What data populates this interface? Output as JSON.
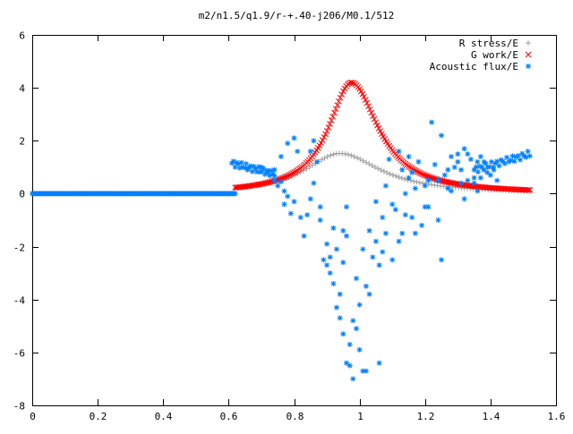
{
  "chart_data": {
    "type": "scatter",
    "title": "m2/n1.5/q1.9/r-+.40-j206/M0.1/512",
    "xlabel": "",
    "ylabel": "",
    "xlim": [
      0,
      1.6
    ],
    "ylim": [
      -8,
      6
    ],
    "xticks": [
      "0",
      "0.2",
      "0.4",
      "0.6",
      "0.8",
      "1",
      "1.2",
      "1.4",
      "1.6"
    ],
    "yticks": [
      "6",
      "4",
      "2",
      "0",
      "-2",
      "-4",
      "-6",
      "-8"
    ],
    "grid": false,
    "legend_position": "top-right",
    "series": [
      {
        "name": "R stress/E",
        "marker": "plus",
        "color": "#a0a0a0",
        "curve": {
          "x_range": [
            0.62,
            1.52
          ],
          "n_points": 100,
          "peak_x": 0.94,
          "peak_y": 1.52,
          "width_left": 0.13,
          "width_right": 0.15
        },
        "points": [
          [
            0.62,
            0.0
          ],
          [
            0.7,
            0.22
          ],
          [
            0.8,
            0.7
          ],
          [
            0.9,
            1.4
          ],
          [
            0.94,
            1.52
          ],
          [
            1.0,
            1.28
          ],
          [
            1.1,
            0.5
          ],
          [
            1.2,
            0.12
          ],
          [
            1.3,
            0.0
          ],
          [
            1.52,
            0.0
          ]
        ]
      },
      {
        "name": "G work/E",
        "marker": "cross",
        "color": "#ff0000",
        "curve": {
          "x_range": [
            0.62,
            1.52
          ],
          "n_points": 200,
          "peak_x": 0.975,
          "peak_y": 4.2,
          "width_left": 0.085,
          "width_right": 0.1
        },
        "points": [
          [
            0.62,
            0.0
          ],
          [
            0.8,
            0.75
          ],
          [
            0.9,
            2.9
          ],
          [
            0.975,
            4.2
          ],
          [
            1.05,
            2.8
          ],
          [
            1.2,
            0.8
          ],
          [
            1.35,
            0.15
          ],
          [
            1.52,
            0.0
          ]
        ]
      },
      {
        "name": "Acoustic flux/E",
        "marker": "star",
        "color": "#0080ff",
        "flat_segment": {
          "x_range": [
            0.0,
            0.62
          ],
          "y": 0.0,
          "n_points": 160
        },
        "left_edge": {
          "x_range": [
            0.61,
            0.74
          ],
          "y_start": 1.15,
          "y_end": 0.75,
          "n_points": 28
        },
        "right_edge": {
          "x_range": [
            1.35,
            1.52
          ],
          "y_start": 0.9,
          "y_end": 1.5,
          "n_points": 30
        },
        "points": [
          [
            0.66,
            0.95
          ],
          [
            0.7,
            1.0
          ],
          [
            0.72,
            0.8
          ],
          [
            0.74,
            0.5
          ],
          [
            0.75,
            0.3
          ],
          [
            0.76,
            0.45
          ],
          [
            0.77,
            0.1
          ],
          [
            0.78,
            -0.1
          ],
          [
            0.74,
            0.9
          ],
          [
            0.76,
            1.4
          ],
          [
            0.78,
            1.9
          ],
          [
            0.8,
            2.1
          ],
          [
            0.81,
            1.6
          ],
          [
            0.77,
            -0.4
          ],
          [
            0.79,
            -0.75
          ],
          [
            0.8,
            -0.3
          ],
          [
            0.82,
            -0.9
          ],
          [
            0.83,
            -1.6
          ],
          [
            0.84,
            -0.8
          ],
          [
            0.85,
            -0.2
          ],
          [
            0.86,
            0.4
          ],
          [
            0.85,
            1.6
          ],
          [
            0.86,
            2.0
          ],
          [
            0.87,
            1.2
          ],
          [
            0.88,
            -0.5
          ],
          [
            0.88,
            -1.0
          ],
          [
            0.89,
            -2.5
          ],
          [
            0.9,
            -1.9
          ],
          [
            0.9,
            -2.7
          ],
          [
            0.91,
            -2.4
          ],
          [
            0.91,
            -3.0
          ],
          [
            0.92,
            -3.4
          ],
          [
            0.92,
            -1.3
          ],
          [
            0.93,
            -2.1
          ],
          [
            0.93,
            -4.3
          ],
          [
            0.94,
            -4.7
          ],
          [
            0.94,
            -3.8
          ],
          [
            0.95,
            -5.3
          ],
          [
            0.95,
            -2.6
          ],
          [
            0.95,
            -1.4
          ],
          [
            0.96,
            -1.6
          ],
          [
            0.96,
            -0.5
          ],
          [
            0.96,
            -6.4
          ],
          [
            0.97,
            -6.5
          ],
          [
            0.97,
            -5.7
          ],
          [
            0.98,
            -7.0
          ],
          [
            0.98,
            -4.8
          ],
          [
            0.99,
            -3.2
          ],
          [
            0.99,
            -5.1
          ],
          [
            1.0,
            -5.9
          ],
          [
            1.0,
            -4.2
          ],
          [
            1.01,
            -2.1
          ],
          [
            1.01,
            -6.7
          ],
          [
            1.02,
            -6.7
          ],
          [
            1.02,
            -3.5
          ],
          [
            1.03,
            -1.4
          ],
          [
            1.03,
            -3.8
          ],
          [
            1.04,
            -2.4
          ],
          [
            1.05,
            -1.8
          ],
          [
            1.05,
            -0.3
          ],
          [
            1.06,
            -2.7
          ],
          [
            1.06,
            -6.4
          ],
          [
            1.07,
            -2.2
          ],
          [
            1.07,
            -0.9
          ],
          [
            1.08,
            -1.5
          ],
          [
            1.08,
            0.3
          ],
          [
            1.09,
            1.3
          ],
          [
            1.1,
            -2.5
          ],
          [
            1.1,
            -0.4
          ],
          [
            1.11,
            -0.6
          ],
          [
            1.12,
            1.6
          ],
          [
            1.12,
            -1.8
          ],
          [
            1.13,
            0.9
          ],
          [
            1.13,
            -1.5
          ],
          [
            1.14,
            -0.8
          ],
          [
            1.14,
            0.0
          ],
          [
            1.15,
            0.6
          ],
          [
            1.15,
            1.4
          ],
          [
            1.16,
            -0.9
          ],
          [
            1.16,
            0.8
          ],
          [
            1.17,
            0.2
          ],
          [
            1.17,
            -1.5
          ],
          [
            1.18,
            1.2
          ],
          [
            1.19,
            -1.2
          ],
          [
            1.2,
            0.3
          ],
          [
            1.2,
            -0.5
          ],
          [
            1.21,
            0.5
          ],
          [
            1.21,
            -0.5
          ],
          [
            1.22,
            2.7
          ],
          [
            1.23,
            1.1
          ],
          [
            1.24,
            0.5
          ],
          [
            1.24,
            -1.0
          ],
          [
            1.25,
            2.2
          ],
          [
            1.25,
            -2.5
          ],
          [
            1.26,
            0.7
          ],
          [
            1.27,
            0.9
          ],
          [
            1.27,
            0.2
          ],
          [
            1.28,
            0.1
          ],
          [
            1.29,
            1.0
          ],
          [
            1.3,
            1.5
          ],
          [
            1.31,
            0.4
          ],
          [
            1.31,
            0.9
          ],
          [
            1.32,
            -0.2
          ],
          [
            1.32,
            1.7
          ],
          [
            1.33,
            0.5
          ],
          [
            1.34,
            1.3
          ],
          [
            1.35,
            0.4
          ],
          [
            1.35,
            0.6
          ],
          [
            1.36,
            0.1
          ],
          [
            1.37,
            0.6
          ],
          [
            1.37,
            1.4
          ],
          [
            1.38,
            1.2
          ],
          [
            1.39,
            0.8
          ],
          [
            1.4,
            0.7
          ],
          [
            1.41,
            0.9
          ],
          [
            1.42,
            0.5
          ],
          [
            1.3,
            1.2
          ],
          [
            1.33,
            1.5
          ],
          [
            1.36,
            1.2
          ],
          [
            1.28,
            1.4
          ]
        ]
      }
    ]
  }
}
